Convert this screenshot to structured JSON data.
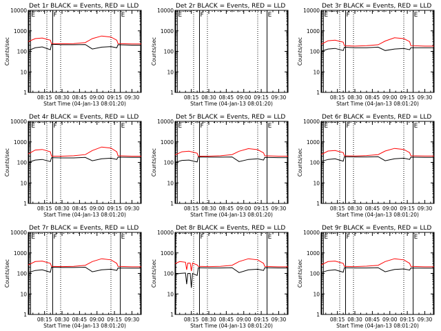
{
  "colors": {
    "events": "#000000",
    "lld": "#ff0000",
    "background": "#ffffff",
    "axes": "#000000"
  },
  "figure": {
    "title_suffix": "BLACK = Events, RED = LLD",
    "xlabel": "Start Time (04-Jan-13 08:01:20)",
    "ylabel": "Counts/sec",
    "x_tick_labels": [
      "08:15",
      "08:30",
      "08:45",
      "09:00",
      "09:15",
      "09:30"
    ],
    "y_tick_labels": [
      "1",
      "10",
      "100",
      "1000",
      "10000"
    ]
  },
  "chart_data": [
    {
      "type": "line",
      "title": "Det 1r BLACK = Events, RED = LLD",
      "xlabel": "Start Time (04-Jan-13 08:01:20)",
      "ylabel": "Counts/sec",
      "ylog": true,
      "ylim": [
        1,
        10000
      ],
      "xlim": [
        "08:01",
        "09:38"
      ],
      "x": [
        "08:01",
        "08:07",
        "08:13",
        "08:20",
        "08:21",
        "08:30",
        "08:40",
        "08:50",
        "08:56",
        "09:04",
        "09:12",
        "09:17",
        "09:18",
        "09:30",
        "09:38"
      ],
      "series": [
        {
          "name": "BLACK = Events",
          "values": [
            110,
            150,
            165,
            120,
            220,
            210,
            210,
            215,
            130,
            160,
            170,
            150,
            210,
            200,
            200
          ]
        },
        {
          "name": "RED = LLD",
          "values": [
            300,
            420,
            450,
            350,
            240,
            235,
            240,
            270,
            420,
            560,
            500,
            350,
            240,
            230,
            230
          ]
        }
      ],
      "flags": [
        {
          "label": "E",
          "time": "08:03"
        },
        {
          "label": "F",
          "time": "08:22"
        },
        {
          "label": "E",
          "time": "09:20"
        }
      ]
    },
    {
      "type": "line",
      "title": "Det 2r BLACK = Events, RED = LLD",
      "xlabel": "Start Time (04-Jan-13 08:01:20)",
      "ylabel": "Counts/sec",
      "ylog": true,
      "ylim": [
        1,
        10000
      ],
      "xlim": [
        "08:01",
        "09:38"
      ],
      "x": [],
      "series": [],
      "flags": [
        {
          "label": "E",
          "time": "08:03"
        },
        {
          "label": "F",
          "time": "08:22"
        },
        {
          "label": "E",
          "time": "09:20"
        }
      ]
    },
    {
      "type": "line",
      "title": "Det 3r BLACK = Events, RED = LLD",
      "xlabel": "Start Time (04-Jan-13 08:01:20)",
      "ylabel": "Counts/sec",
      "ylog": true,
      "ylim": [
        1,
        10000
      ],
      "xlim": [
        "08:01",
        "09:38"
      ],
      "x": [
        "08:01",
        "08:07",
        "08:13",
        "08:20",
        "08:21",
        "08:30",
        "08:40",
        "08:50",
        "08:56",
        "09:04",
        "09:12",
        "09:17",
        "09:18",
        "09:30",
        "09:38"
      ],
      "series": [
        {
          "name": "BLACK = Events",
          "values": [
            100,
            130,
            140,
            110,
            160,
            150,
            150,
            160,
            110,
            130,
            140,
            120,
            150,
            150,
            150
          ]
        },
        {
          "name": "RED = LLD",
          "values": [
            220,
            330,
            350,
            280,
            190,
            180,
            190,
            210,
            320,
            460,
            420,
            300,
            190,
            180,
            180
          ]
        }
      ],
      "flags": [
        {
          "label": "E",
          "time": "08:03"
        },
        {
          "label": "F",
          "time": "08:22"
        },
        {
          "label": "E",
          "time": "09:20"
        }
      ]
    },
    {
      "type": "line",
      "title": "Det 4r BLACK = Events, RED = LLD",
      "xlabel": "Start Time (04-Jan-13 08:01:20)",
      "ylabel": "Counts/sec",
      "ylog": true,
      "ylim": [
        1,
        10000
      ],
      "xlim": [
        "08:01",
        "09:38"
      ],
      "x": [
        "08:01",
        "08:07",
        "08:13",
        "08:20",
        "08:21",
        "08:30",
        "08:40",
        "08:50",
        "08:56",
        "09:04",
        "09:12",
        "09:17",
        "09:18",
        "09:30",
        "09:38"
      ],
      "series": [
        {
          "name": "BLACK = Events",
          "values": [
            100,
            130,
            140,
            110,
            170,
            165,
            165,
            175,
            120,
            150,
            160,
            140,
            180,
            175,
            175
          ]
        },
        {
          "name": "RED = LLD",
          "values": [
            260,
            400,
            430,
            330,
            200,
            200,
            210,
            240,
            380,
            560,
            500,
            330,
            210,
            200,
            200
          ]
        }
      ],
      "flags": [
        {
          "label": "E",
          "time": "08:03"
        },
        {
          "label": "F",
          "time": "08:22"
        },
        {
          "label": "E",
          "time": "09:20"
        }
      ]
    },
    {
      "type": "line",
      "title": "Det 5r BLACK = Events, RED = LLD",
      "xlabel": "Start Time (04-Jan-13 08:01:20)",
      "ylabel": "Counts/sec",
      "ylog": true,
      "ylim": [
        1,
        10000
      ],
      "xlim": [
        "08:01",
        "09:38"
      ],
      "x": [
        "08:01",
        "08:07",
        "08:13",
        "08:20",
        "08:21",
        "08:30",
        "08:40",
        "08:50",
        "08:56",
        "09:04",
        "09:12",
        "09:17",
        "09:18",
        "09:30",
        "09:38"
      ],
      "series": [
        {
          "name": "BLACK = Events",
          "values": [
            100,
            125,
            130,
            105,
            185,
            180,
            180,
            185,
            110,
            140,
            150,
            130,
            175,
            170,
            170
          ]
        },
        {
          "name": "RED = LLD",
          "values": [
            230,
            330,
            350,
            280,
            200,
            200,
            210,
            240,
            350,
            470,
            420,
            290,
            210,
            200,
            200
          ]
        }
      ],
      "flags": [
        {
          "label": "E",
          "time": "08:03"
        },
        {
          "label": "F",
          "time": "08:22"
        },
        {
          "label": "E",
          "time": "09:20"
        }
      ]
    },
    {
      "type": "line",
      "title": "Det 6r BLACK = Events, RED = LLD",
      "xlabel": "Start Time (04-Jan-13 08:01:20)",
      "ylabel": "Counts/sec",
      "ylog": true,
      "ylim": [
        1,
        10000
      ],
      "xlim": [
        "08:01",
        "09:38"
      ],
      "x": [
        "08:01",
        "08:07",
        "08:13",
        "08:20",
        "08:21",
        "08:30",
        "08:40",
        "08:50",
        "08:56",
        "09:04",
        "09:12",
        "09:17",
        "09:18",
        "09:30",
        "09:38"
      ],
      "series": [
        {
          "name": "BLACK = Events",
          "values": [
            110,
            140,
            150,
            115,
            190,
            185,
            185,
            190,
            120,
            150,
            160,
            140,
            180,
            175,
            175
          ]
        },
        {
          "name": "RED = LLD",
          "values": [
            240,
            360,
            380,
            300,
            210,
            205,
            215,
            240,
            360,
            480,
            430,
            300,
            210,
            205,
            205
          ]
        }
      ],
      "flags": [
        {
          "label": "E",
          "time": "08:03"
        },
        {
          "label": "F",
          "time": "08:22"
        },
        {
          "label": "E",
          "time": "09:20"
        }
      ]
    },
    {
      "type": "line",
      "title": "Det 7r BLACK = Events, RED = LLD",
      "xlabel": "Start Time (04-Jan-13 08:01:20)",
      "ylabel": "Counts/sec",
      "ylog": true,
      "ylim": [
        1,
        10000
      ],
      "xlim": [
        "08:01",
        "09:38"
      ],
      "x": [
        "08:01",
        "08:07",
        "08:13",
        "08:20",
        "08:21",
        "08:30",
        "08:40",
        "08:50",
        "08:56",
        "09:04",
        "09:12",
        "09:17",
        "09:18",
        "09:30",
        "09:38"
      ],
      "series": [
        {
          "name": "BLACK = Events",
          "values": [
            110,
            140,
            150,
            115,
            200,
            195,
            195,
            200,
            120,
            150,
            160,
            140,
            185,
            180,
            180
          ]
        },
        {
          "name": "RED = LLD",
          "values": [
            260,
            380,
            400,
            310,
            220,
            215,
            220,
            250,
            380,
            520,
            460,
            310,
            220,
            210,
            210
          ]
        }
      ],
      "flags": [
        {
          "label": "E",
          "time": "08:03"
        },
        {
          "label": "F",
          "time": "08:22"
        },
        {
          "label": "E",
          "time": "09:20"
        }
      ]
    },
    {
      "type": "line",
      "title": "Det 8r BLACK = Events, RED = LLD",
      "xlabel": "Start Time (04-Jan-13 08:01:20)",
      "ylabel": "Counts/sec",
      "ylog": true,
      "ylim": [
        1,
        10000
      ],
      "xlim": [
        "08:01",
        "09:38"
      ],
      "x": [
        "08:01",
        "08:05",
        "08:10",
        "08:11",
        "08:12",
        "08:14",
        "08:15",
        "08:16",
        "08:20",
        "08:21",
        "08:30",
        "08:40",
        "08:50",
        "08:56",
        "09:04",
        "09:12",
        "09:17",
        "09:18",
        "09:30",
        "09:38"
      ],
      "series": [
        {
          "name": "BLACK = Events",
          "values": [
            90,
            100,
            105,
            30,
            100,
            100,
            20,
            100,
            80,
            190,
            185,
            185,
            190,
            110,
            150,
            160,
            140,
            190,
            185,
            185
          ]
        },
        {
          "name": "RED = LLD",
          "values": [
            300,
            380,
            350,
            150,
            320,
            320,
            130,
            320,
            260,
            220,
            215,
            220,
            250,
            380,
            520,
            460,
            310,
            220,
            210,
            210
          ]
        }
      ],
      "flags": [
        {
          "label": "F",
          "time": "08:22"
        },
        {
          "label": "E",
          "time": "09:20"
        }
      ]
    },
    {
      "type": "line",
      "title": "Det 9r BLACK = Events, RED = LLD",
      "xlabel": "Start Time (04-Jan-13 08:01:20)",
      "ylabel": "Counts/sec",
      "ylog": true,
      "ylim": [
        1,
        10000
      ],
      "xlim": [
        "08:01",
        "09:38"
      ],
      "x": [
        "08:01",
        "08:07",
        "08:13",
        "08:20",
        "08:21",
        "08:30",
        "08:40",
        "08:50",
        "08:56",
        "09:04",
        "09:12",
        "09:17",
        "09:18",
        "09:30",
        "09:38"
      ],
      "series": [
        {
          "name": "BLACK = Events",
          "values": [
            110,
            140,
            150,
            115,
            190,
            185,
            185,
            190,
            120,
            155,
            165,
            145,
            185,
            180,
            180
          ]
        },
        {
          "name": "RED = LLD",
          "values": [
            260,
            380,
            400,
            310,
            220,
            215,
            225,
            250,
            380,
            520,
            460,
            310,
            220,
            210,
            210
          ]
        }
      ],
      "flags": [
        {
          "label": "E",
          "time": "08:03"
        },
        {
          "label": "F",
          "time": "08:22"
        },
        {
          "label": "E",
          "time": "09:20"
        }
      ]
    }
  ]
}
